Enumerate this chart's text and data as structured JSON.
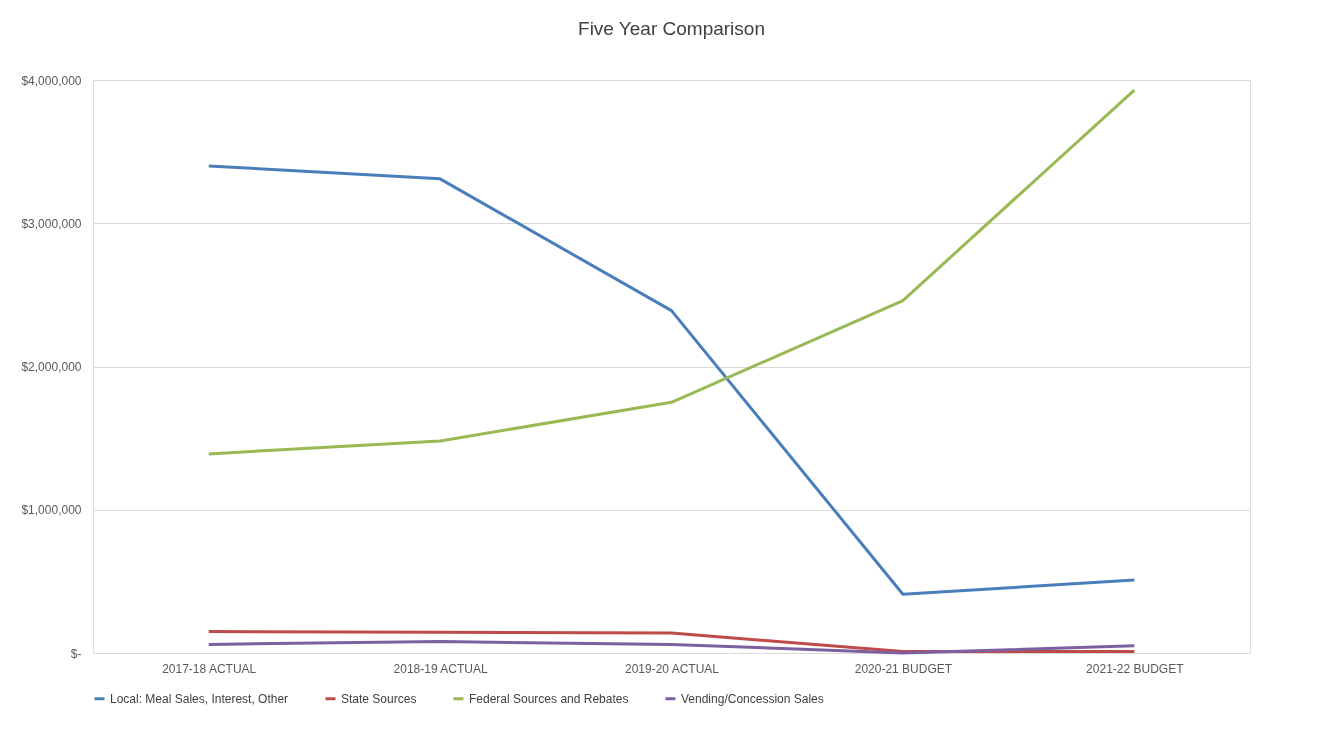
{
  "chart_data": {
    "type": "line",
    "title": "Five Year Comparison",
    "categories": [
      "2017-18 ACTUAL",
      "2018-19 ACTUAL",
      "2019-20 ACTUAL",
      "2020-21 BUDGET",
      "2021-22 BUDGET"
    ],
    "series": [
      {
        "name": "Local: Meal Sales, Interest, Other",
        "color": "#4a7ebb",
        "values": [
          3400000,
          3310000,
          2390000,
          410000,
          510000
        ]
      },
      {
        "name": "State Sources",
        "color": "#be4b48",
        "values": [
          150000,
          145000,
          140000,
          10000,
          10000
        ]
      },
      {
        "name": "Federal Sources and Rebates",
        "color": "#98b954",
        "values": [
          1390000,
          1480000,
          1750000,
          2460000,
          3930000
        ]
      },
      {
        "name": "Vending/Concession Sales",
        "color": "#7d60a0",
        "values": [
          60000,
          80000,
          60000,
          0,
          50000
        ]
      }
    ],
    "ylim": [
      0,
      4000000
    ],
    "yticks": [
      {
        "value": 0,
        "label": "$-"
      },
      {
        "value": 1000000,
        "label": "$1,000,000"
      },
      {
        "value": 2000000,
        "label": "$2,000,000"
      },
      {
        "value": 3000000,
        "label": "$3,000,000"
      },
      {
        "value": 4000000,
        "label": "$4,000,000"
      }
    ],
    "grid": "y",
    "legend": "bottom",
    "marker": "none",
    "line_style": "solid"
  }
}
